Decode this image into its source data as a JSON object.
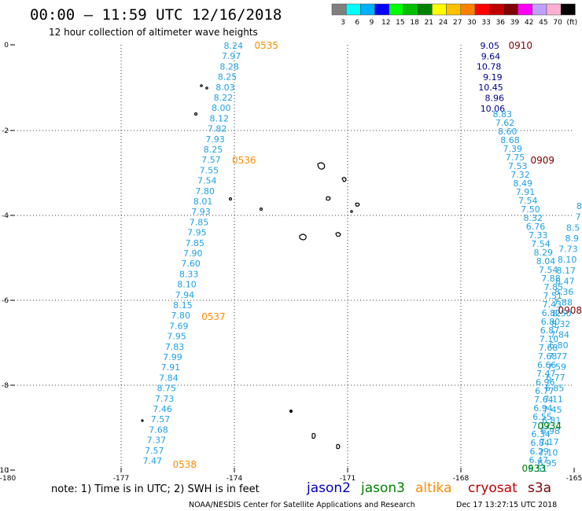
{
  "title": "00:00 – 11:59 UTC 12/16/2018",
  "subtitle": "12 hour collection of altimeter wave heights",
  "colorbar": {
    "colors": [
      "#808080",
      "#00ffff",
      "#00b0ff",
      "#0000ff",
      "#00ff00",
      "#00c000",
      "#008000",
      "#ffff00",
      "#ffc000",
      "#ff8000",
      "#ff0000",
      "#c00000",
      "#800000",
      "#ff00ff",
      "#c0a0ff",
      "#ffb0d0",
      "#000000"
    ],
    "labels": [
      "3",
      "6",
      "9",
      "12",
      "15",
      "18",
      "21",
      "24",
      "27",
      "30",
      "33",
      "36",
      "39",
      "42",
      "45",
      "70",
      "(ft)"
    ]
  },
  "axes": {
    "x_ticks": [
      "-180",
      "-177",
      "-174",
      "-171",
      "-168",
      "-165"
    ],
    "y_ticks": [
      "0",
      "-2",
      "-4",
      "-6",
      "-8",
      "-10"
    ]
  },
  "track_colors": {
    "jason2": "#0000c8",
    "jason3": "#008000",
    "altika": "#ff8c00",
    "cryosat": "#c00000",
    "s3a": "#800000",
    "swh_light": "#1ea0e6",
    "swh_dark": "#00008c"
  },
  "tracks": [
    {
      "name": "altika-west",
      "color": "#1ea0e6",
      "values": [
        "8.24",
        "7.97",
        "8.28",
        "8.25",
        "8.03",
        "8.22",
        "8.00",
        "8.12",
        "7.82",
        "7.93",
        "8.25",
        "7.57",
        "7.55",
        "7.54",
        "7.80",
        "8.01",
        "7.93",
        "7.85",
        "7.95",
        "7.85",
        "7.90",
        "7.60",
        "8.33",
        "8.10",
        "7.94",
        "8.15",
        "7.80",
        "7.69",
        "7.95",
        "7.83",
        "7.99",
        "7.91",
        "7.84",
        "8.75",
        "7.73",
        "7.46",
        "7.57",
        "7.68",
        "7.37",
        "7.57",
        "7.47"
      ],
      "times": [
        "0535",
        "0536",
        "0537",
        "0538"
      ]
    },
    {
      "name": "s3a-east",
      "dark_values": [
        "9.05",
        "9.64",
        "10.78",
        "9.19",
        "10.45",
        "8.96",
        "10.06"
      ],
      "values": [
        "8.83",
        "7.62",
        "8.60",
        "8.68",
        "7.39",
        "7.75",
        "7.53",
        "7.32",
        "8.49",
        "7.91",
        "7.54",
        "7.50",
        "8.32",
        "6.76",
        "7.33",
        "7.54",
        "8.29",
        "8.04",
        "7.54",
        "7.88",
        "7.85",
        "7.51",
        "7.43",
        "6.82",
        "6.80",
        "6.87",
        "7.10",
        "7.68",
        "7.68",
        "6.66",
        "7.47",
        "6.96",
        "6.77",
        "7.64",
        "6.94",
        "6.55",
        "7.12",
        "6.34",
        "6.84",
        "6.29",
        "6.47",
        "6.51"
      ],
      "times": [
        "0910",
        "0909",
        "0908"
      ]
    },
    {
      "name": "jason3-east",
      "values": [
        "8",
        "7",
        "8.5",
        "8.9",
        "7.73",
        "8.10",
        "8.17",
        "8.47",
        "8.36",
        "7.88",
        "8.50",
        "8.32",
        "7.84",
        "6.80",
        "7.77",
        "7.59",
        "6.77",
        "6.85",
        "7.11",
        "7.45",
        "6.81",
        "6.98",
        "7.17",
        "7.10",
        "6.95"
      ],
      "times": [
        "0934",
        "0933"
      ]
    }
  ],
  "legend": {
    "note": "note: 1) Time is in UTC; 2) SWH is in feet",
    "jason2": "jason2",
    "jason3": "jason3",
    "altika": "altika",
    "cryosat": "cryosat",
    "s3a": "s3a"
  },
  "footer": {
    "credit": "NOAA/NESDIS Center for Satellite Applications and Research",
    "timestamp": "Dec 17 13:27:15 UTC 2018"
  }
}
